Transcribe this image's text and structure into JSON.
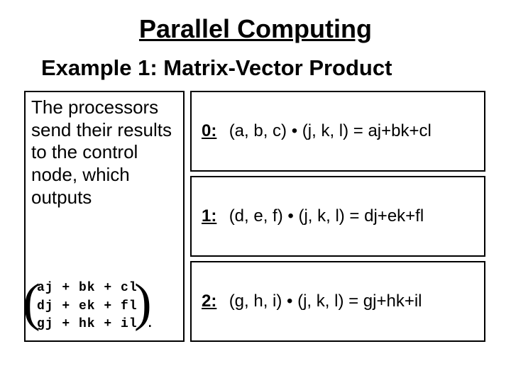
{
  "title": "Parallel Computing",
  "subtitle": "Example 1: Matrix-Vector Product",
  "description": "The processors send their results to the control node, which outputs",
  "matrix": {
    "rows": [
      "aj + bk + cl",
      "dj + ek + fl",
      "gj + hk + il"
    ]
  },
  "period": ".",
  "processors": [
    {
      "idx": "0:",
      "expr": "(a, b, c) • (j, k, l) = aj+bk+cl"
    },
    {
      "idx": "1:",
      "expr": "(d, e, f) • (j, k, l) = dj+ek+fl"
    },
    {
      "idx": "2:",
      "expr": "(g, h, i) • (j, k, l) = gj+hk+il"
    }
  ],
  "style": {
    "background_color": "#ffffff",
    "text_color": "#000000",
    "border_color": "#000000",
    "title_fontsize": 36,
    "subtitle_fontsize": 31,
    "body_fontsize": 26,
    "proc_fontsize": 24,
    "matrix_font": "Courier New",
    "matrix_fontsize": 18,
    "slide_width": 720,
    "slide_height": 540
  }
}
